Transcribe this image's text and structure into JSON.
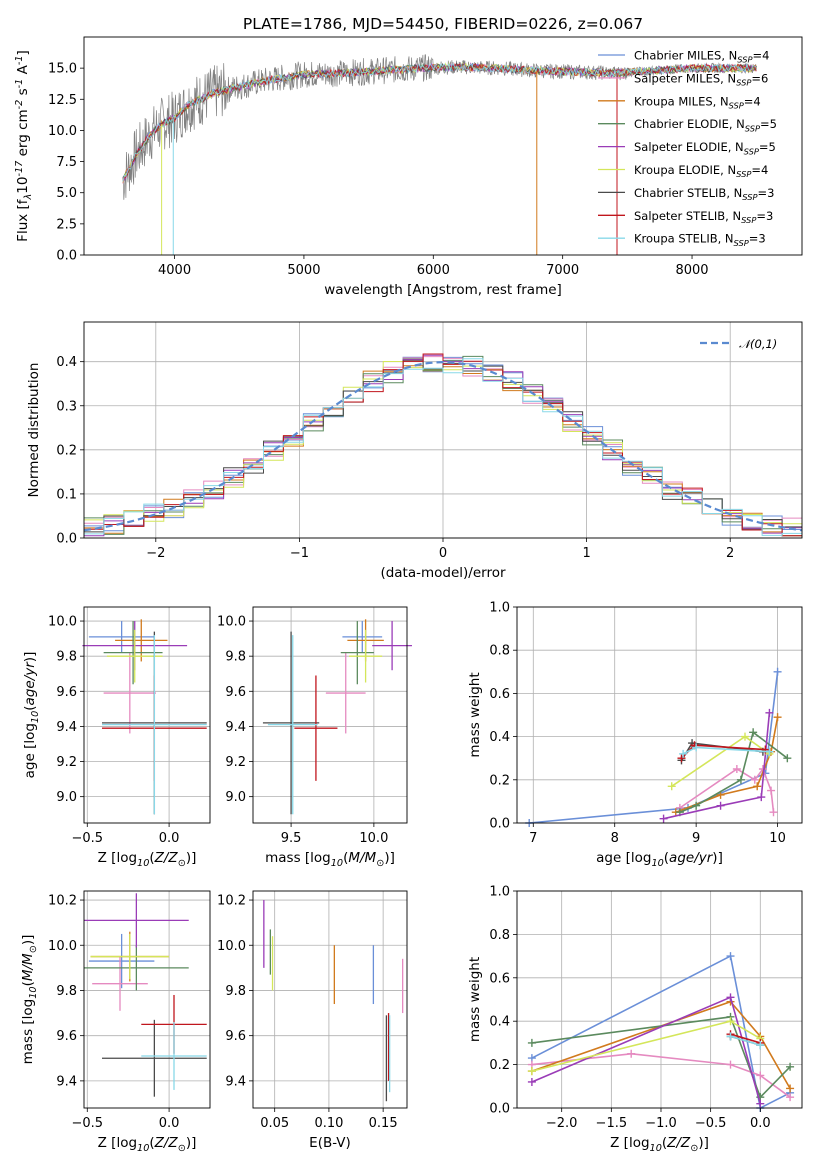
{
  "chart_data": [
    {
      "type": "line",
      "title": "PLATE=1786, MJD=54450, FIBERID=0226, z=0.067",
      "xlabel": "wavelength [Angstrom, rest frame]",
      "ylabel": "Flux [f$_\\lambda$10$^{-17}$ erg cm$^{-2}$ s$^{-1}$ A$^{-1}$]",
      "xlim": [
        3300,
        8850
      ],
      "ylim": [
        0,
        17.5
      ],
      "xticks": [
        "4000",
        "5000",
        "6000",
        "7000",
        "8000"
      ],
      "yticks": [
        "0.0",
        "2.5",
        "5.0",
        "7.5",
        "10.0",
        "12.5",
        "15.0"
      ],
      "legend_position": "right",
      "continuum": {
        "x": [
          3600,
          3700,
          3800,
          3900,
          4000,
          4100,
          4200,
          4300,
          4500,
          4700,
          5000,
          5300,
          5600,
          5900,
          6200,
          6500,
          6800,
          7100,
          7400,
          7700,
          8000,
          8300,
          8500
        ],
        "y": [
          6.0,
          8.0,
          9.5,
          10.5,
          11.0,
          12.0,
          12.5,
          13.0,
          13.5,
          14.0,
          14.5,
          14.6,
          14.8,
          15.0,
          15.1,
          15.0,
          14.8,
          14.7,
          14.6,
          14.8,
          15.0,
          15.0,
          15.0
        ]
      },
      "series": [
        {
          "name": "Chabrier MILES, N$_{SSP}$=4",
          "color": "#6a8fd8"
        },
        {
          "name": "Salpeter MILES, N$_{SSP}$=6",
          "color": "#e58ac0"
        },
        {
          "name": "Kroupa MILES, N$_{SSP}$=4",
          "color": "#d17a1d"
        },
        {
          "name": "Chabrier ELODIE, N$_{SSP}$=5",
          "color": "#5b8a5e"
        },
        {
          "name": "Salpeter ELODIE, N$_{SSP}$=5",
          "color": "#9a3cb7"
        },
        {
          "name": "Kroupa ELODIE, N$_{SSP}$=4",
          "color": "#d4e65a"
        },
        {
          "name": "Chabrier STELIB, N$_{SSP}$=3",
          "color": "#4a4a4a"
        },
        {
          "name": "Salpeter STELIB, N$_{SSP}$=3",
          "color": "#c0161d"
        },
        {
          "name": "Kroupa STELIB, N$_{SSP}$=3",
          "color": "#88d8e8"
        }
      ]
    },
    {
      "type": "line",
      "xlabel": "(data-model)/error",
      "ylabel": "Normed distribution",
      "xlim": [
        -2.5,
        2.5
      ],
      "ylim": [
        0,
        0.49
      ],
      "xticks": [
        "−2",
        "−1",
        "0",
        "1",
        "2"
      ],
      "yticks": [
        "0.0",
        "0.1",
        "0.2",
        "0.3",
        "0.4"
      ],
      "grid": true,
      "legend_position": "top-right",
      "series": [
        {
          "name": "$\\mathcal{N}(0,1)$",
          "style": "dashed",
          "color": "#5a8ad0"
        }
      ]
    },
    {
      "type": "scatter",
      "xlabel": "Z [log$_{10}$($Z/Z_\\odot$)]",
      "ylabel": "age  [log$_{10}$($age/yr$)]",
      "xlim": [
        -0.52,
        0.25
      ],
      "ylim": [
        8.85,
        10.08
      ],
      "xticks": [
        "−0.5",
        "0.0"
      ],
      "yticks": [
        "9.0",
        "9.2",
        "9.4",
        "9.6",
        "9.8",
        "10.0"
      ],
      "grid": true,
      "points": [
        {
          "x": -0.29,
          "y": 9.91,
          "xerr": 0.2,
          "yerr": 0.09,
          "color": "#6a8fd8"
        },
        {
          "x": -0.24,
          "y": 9.59,
          "xerr": 0.16,
          "yerr": 0.23,
          "color": "#e58ac0"
        },
        {
          "x": -0.17,
          "y": 9.89,
          "xerr": 0.16,
          "yerr": 0.12,
          "color": "#d17a1d"
        },
        {
          "x": -0.22,
          "y": 9.82,
          "xerr": 0.18,
          "yerr": 0.18,
          "color": "#5b8a5e"
        },
        {
          "x": -0.21,
          "y": 9.86,
          "xerr": 0.32,
          "yerr": 0.14,
          "color": "#9a3cb7"
        },
        {
          "x": -0.21,
          "y": 9.8,
          "xerr": 0.17,
          "yerr": 0.15,
          "color": "#d4e65a"
        },
        {
          "x": -0.09,
          "y": 9.42,
          "xerr": 0.32,
          "yerr": 0.52,
          "color": "#4a4a4a"
        },
        {
          "x": -0.09,
          "y": 9.39,
          "xerr": 0.32,
          "yerr": 0.3,
          "color": "#c0161d"
        },
        {
          "x": -0.09,
          "y": 9.41,
          "xerr": 0.32,
          "yerr": 0.51,
          "color": "#88d8e8"
        }
      ]
    },
    {
      "type": "scatter",
      "xlabel": "mass [log$_{10}$($M/M_\\odot$)]",
      "ylabel": "",
      "xlim": [
        9.27,
        10.2
      ],
      "ylim": [
        8.85,
        10.08
      ],
      "xticks": [
        "9.5",
        "10.0"
      ],
      "yticks": [
        "9.0",
        "9.2",
        "9.4",
        "9.6",
        "9.8",
        "10.0"
      ],
      "grid": true,
      "points": [
        {
          "x": 9.93,
          "y": 9.91,
          "xerr": 0.12,
          "yerr": 0.09,
          "color": "#6a8fd8"
        },
        {
          "x": 9.83,
          "y": 9.59,
          "xerr": 0.12,
          "yerr": 0.23,
          "color": "#e58ac0"
        },
        {
          "x": 9.95,
          "y": 9.89,
          "xerr": 0.11,
          "yerr": 0.12,
          "color": "#d17a1d"
        },
        {
          "x": 9.9,
          "y": 9.82,
          "xerr": 0.1,
          "yerr": 0.18,
          "color": "#5b8a5e"
        },
        {
          "x": 10.11,
          "y": 9.86,
          "xerr": 0.12,
          "yerr": 0.14,
          "color": "#9a3cb7"
        },
        {
          "x": 9.95,
          "y": 9.8,
          "xerr": 0.1,
          "yerr": 0.15,
          "color": "#d4e65a"
        },
        {
          "x": 9.5,
          "y": 9.42,
          "xerr": 0.17,
          "yerr": 0.52,
          "color": "#4a4a4a"
        },
        {
          "x": 9.65,
          "y": 9.39,
          "xerr": 0.13,
          "yerr": 0.3,
          "color": "#c0161d"
        },
        {
          "x": 9.51,
          "y": 9.41,
          "xerr": 0.15,
          "yerr": 0.51,
          "color": "#88d8e8"
        }
      ]
    },
    {
      "type": "line",
      "xlabel": "age  [log$_{10}$($age/yr$)]",
      "ylabel": "mass weight",
      "xlim": [
        6.8,
        10.3
      ],
      "ylim": [
        0,
        1.0
      ],
      "xticks": [
        "7",
        "8",
        "9",
        "10"
      ],
      "yticks": [
        "0.0",
        "0.2",
        "0.4",
        "0.6",
        "0.8",
        "1.0"
      ],
      "grid": true,
      "series": [
        {
          "color": "#6a8fd8",
          "x": [
            6.95,
            8.9,
            9.85,
            10.0
          ],
          "y": [
            0.0,
            0.07,
            0.23,
            0.7
          ]
        },
        {
          "color": "#e58ac0",
          "x": [
            8.8,
            9.5,
            9.72,
            9.82,
            9.92,
            9.95
          ],
          "y": [
            0.07,
            0.25,
            0.2,
            0.25,
            0.15,
            0.05
          ]
        },
        {
          "color": "#d17a1d",
          "x": [
            8.75,
            9.3,
            9.75,
            9.92,
            10.0
          ],
          "y": [
            0.05,
            0.13,
            0.17,
            0.33,
            0.49
          ]
        },
        {
          "color": "#5b8a5e",
          "x": [
            8.8,
            9.0,
            9.55,
            9.7,
            10.12
          ],
          "y": [
            0.05,
            0.08,
            0.2,
            0.42,
            0.3
          ]
        },
        {
          "color": "#9a3cb7",
          "x": [
            8.6,
            9.3,
            9.8,
            9.9
          ],
          "y": [
            0.02,
            0.08,
            0.12,
            0.51
          ]
        },
        {
          "color": "#d4e65a",
          "x": [
            8.7,
            9.6,
            9.9
          ],
          "y": [
            0.17,
            0.4,
            0.32
          ]
        },
        {
          "color": "#4a4a4a",
          "x": [
            8.82,
            8.95,
            9.82
          ],
          "y": [
            0.29,
            0.37,
            0.33
          ]
        },
        {
          "color": "#c0161d",
          "x": [
            8.82,
            8.98,
            9.85
          ],
          "y": [
            0.3,
            0.36,
            0.34
          ]
        },
        {
          "color": "#88d8e8",
          "x": [
            8.84,
            9.0,
            9.9
          ],
          "y": [
            0.32,
            0.35,
            0.33
          ]
        }
      ]
    },
    {
      "type": "scatter",
      "xlabel": "Z [log$_{10}$($Z/Z_\\odot$)]",
      "ylabel": "mass [log$_{10}$($M/M_\\odot$)]",
      "xlim": [
        -0.52,
        0.25
      ],
      "ylim": [
        9.28,
        10.24
      ],
      "xticks": [
        "−0.5",
        "0.0"
      ],
      "yticks": [
        "9.4",
        "9.6",
        "9.8",
        "10.0",
        "10.2"
      ],
      "grid": true,
      "points": [
        {
          "x": -0.29,
          "y": 9.93,
          "xerr": 0.2,
          "yerr": 0.12,
          "color": "#6a8fd8"
        },
        {
          "x": -0.3,
          "y": 9.83,
          "xerr": 0.17,
          "yerr": 0.12,
          "color": "#e58ac0"
        },
        {
          "x": -0.24,
          "y": 9.95,
          "xerr": 0.24,
          "yerr": 0.11,
          "color": "#d17a1d"
        },
        {
          "x": -0.2,
          "y": 9.9,
          "xerr": 0.32,
          "yerr": 0.1,
          "color": "#5b8a5e"
        },
        {
          "x": -0.2,
          "y": 10.11,
          "xerr": 0.32,
          "yerr": 0.12,
          "color": "#9a3cb7"
        },
        {
          "x": -0.24,
          "y": 9.95,
          "xerr": 0.24,
          "yerr": 0.1,
          "color": "#d4e65a"
        },
        {
          "x": -0.09,
          "y": 9.5,
          "xerr": 0.32,
          "yerr": 0.17,
          "color": "#4a4a4a"
        },
        {
          "x": 0.03,
          "y": 9.65,
          "xerr": 0.2,
          "yerr": 0.13,
          "color": "#c0161d"
        },
        {
          "x": 0.03,
          "y": 9.51,
          "xerr": 0.2,
          "yerr": 0.15,
          "color": "#88d8e8"
        }
      ]
    },
    {
      "type": "scatter",
      "xlabel": "E(B-V)",
      "ylabel": "",
      "xlim": [
        0.03,
        0.172
      ],
      "ylim": [
        9.28,
        10.24
      ],
      "xticks": [
        "0.05",
        "0.10",
        "0.15"
      ],
      "yticks": [
        "9.4",
        "9.6",
        "9.8",
        "10.0",
        "10.2"
      ],
      "grid": true,
      "points": [
        {
          "x": 0.141,
          "y": 9.87,
          "yerr": 0.13,
          "color": "#6a8fd8"
        },
        {
          "x": 0.168,
          "y": 9.82,
          "yerr": 0.12,
          "color": "#e58ac0"
        },
        {
          "x": 0.105,
          "y": 9.87,
          "yerr": 0.13,
          "color": "#d17a1d"
        },
        {
          "x": 0.046,
          "y": 9.97,
          "yerr": 0.1,
          "color": "#5b8a5e"
        },
        {
          "x": 0.04,
          "y": 10.05,
          "yerr": 0.15,
          "color": "#9a3cb7"
        },
        {
          "x": 0.048,
          "y": 9.92,
          "yerr": 0.12,
          "color": "#d4e65a"
        },
        {
          "x": 0.153,
          "y": 9.5,
          "yerr": 0.19,
          "color": "#4a4a4a"
        },
        {
          "x": 0.155,
          "y": 9.55,
          "yerr": 0.15,
          "color": "#c0161d"
        },
        {
          "x": 0.156,
          "y": 9.52,
          "yerr": 0.17,
          "color": "#88d8e8"
        }
      ]
    },
    {
      "type": "line",
      "xlabel": "Z [log$_{10}$($Z/Z_\\odot$)]",
      "ylabel": "mass weight",
      "xlim": [
        -2.45,
        0.42
      ],
      "ylim": [
        0,
        1.0
      ],
      "xticks": [
        "−2.0",
        "−1.5",
        "−1.0",
        "−0.5",
        "0.0"
      ],
      "yticks": [
        "0.0",
        "0.2",
        "0.4",
        "0.6",
        "0.8",
        "1.0"
      ],
      "grid": true,
      "series": [
        {
          "color": "#6a8fd8",
          "x": [
            -2.3,
            -0.3,
            0.0,
            0.3
          ],
          "y": [
            0.23,
            0.7,
            0.0,
            0.07
          ]
        },
        {
          "color": "#e58ac0",
          "x": [
            -2.3,
            -1.3,
            -0.3,
            0.0,
            0.3
          ],
          "y": [
            0.2,
            0.25,
            0.2,
            0.15,
            0.05
          ]
        },
        {
          "color": "#d17a1d",
          "x": [
            -2.3,
            -0.3,
            0.0,
            0.3
          ],
          "y": [
            0.17,
            0.49,
            0.33,
            0.09
          ]
        },
        {
          "color": "#5b8a5e",
          "x": [
            -2.3,
            -0.3,
            0.0,
            0.3
          ],
          "y": [
            0.3,
            0.42,
            0.05,
            0.19
          ]
        },
        {
          "color": "#9a3cb7",
          "x": [
            -2.3,
            -0.3,
            0.0
          ],
          "y": [
            0.12,
            0.51,
            0.02
          ]
        },
        {
          "color": "#d4e65a",
          "x": [
            -2.3,
            -0.3,
            0.0
          ],
          "y": [
            0.17,
            0.4,
            0.32
          ]
        },
        {
          "color": "#4a4a4a",
          "x": [
            -0.3,
            0.0
          ],
          "y": [
            0.33,
            0.29
          ]
        },
        {
          "color": "#c0161d",
          "x": [
            -0.3,
            0.0
          ],
          "y": [
            0.34,
            0.3
          ]
        },
        {
          "color": "#88d8e8",
          "x": [
            -0.3,
            0.0
          ],
          "y": [
            0.33,
            0.29
          ]
        }
      ]
    }
  ]
}
